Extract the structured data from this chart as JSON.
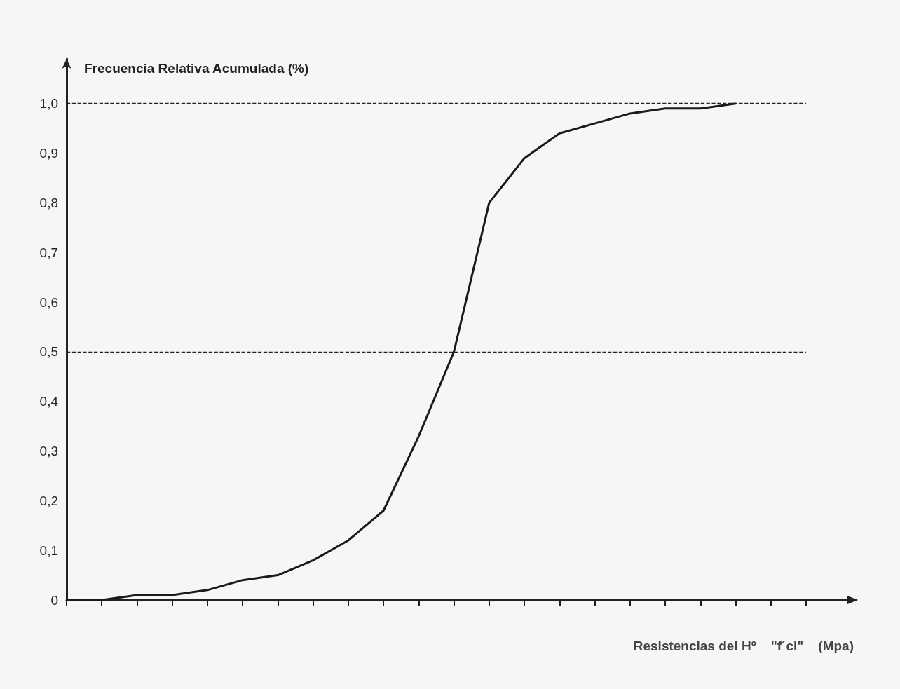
{
  "chart_data": {
    "type": "line",
    "ylabel": "Frecuencia Relativa Acumulada (%)",
    "xlabel": "Resistencias del Hº    \"f´ci\"    (Mpa)",
    "categories": [
      null,
      null,
      null,
      null,
      null,
      null,
      null,
      null,
      null,
      null,
      null,
      null,
      null,
      null,
      null,
      null,
      null,
      null,
      null,
      null,
      null,
      null
    ],
    "series": [
      {
        "color": "#1a1a1a",
        "values": [
          0,
          0.0,
          0.01,
          0.01,
          0.02,
          0.04,
          0.05,
          0.08,
          0.12,
          0.18,
          0.33,
          0.5,
          0.8,
          0.89,
          0.94,
          0.96,
          0.98,
          0.99,
          0.99,
          1.0,
          null,
          null
        ]
      }
    ],
    "ylim": [
      0,
      1.09
    ],
    "yticks": [
      0,
      {
        "value": 0.1,
        "label": "0,1"
      },
      {
        "value": 0.2,
        "label": "0,2"
      },
      {
        "value": 0.3,
        "label": "0,3"
      },
      {
        "value": 0.4,
        "label": "0,4"
      },
      {
        "value": 0.5,
        "label": "0,5"
      },
      {
        "value": 0.6,
        "label": "0,6"
      },
      {
        "value": 0.7,
        "label": "0,7"
      },
      {
        "value": 0.8,
        "label": "0,8"
      },
      {
        "value": 0.9,
        "label": "0,9"
      },
      {
        "value": 1.0,
        "label": "1,0"
      }
    ],
    "ref_lines": [
      {
        "axis": "y",
        "value": 1.0,
        "line_style": "dashed"
      },
      {
        "axis": "y",
        "value": 0.5,
        "line_style": "dashed"
      }
    ]
  }
}
